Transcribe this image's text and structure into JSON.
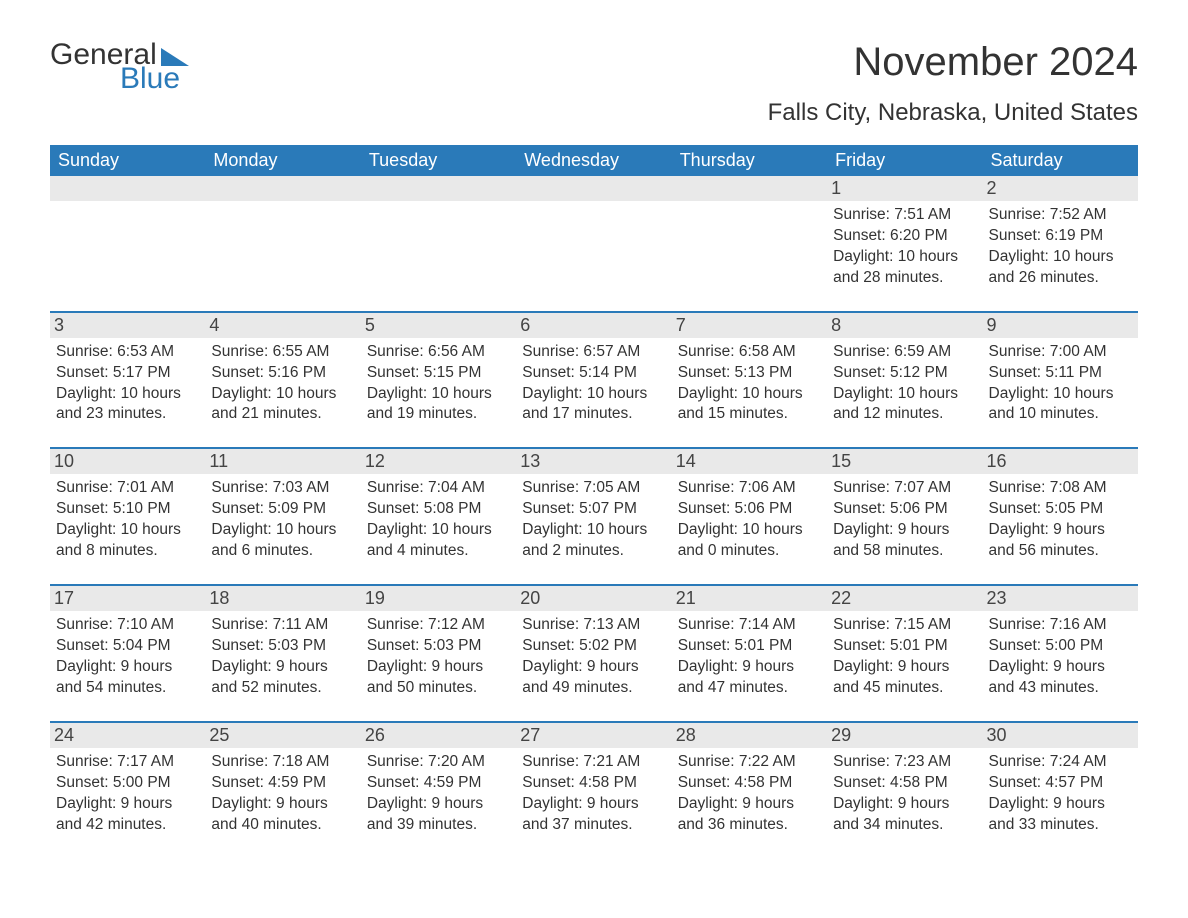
{
  "brand": {
    "word1": "General",
    "word2": "Blue"
  },
  "title": "November 2024",
  "location": "Falls City, Nebraska, United States",
  "colors": {
    "header_bg": "#2a7ab9",
    "header_text": "#ffffff",
    "daynum_bg": "#e9e9e9",
    "row_divider": "#2a7ab9",
    "body_text": "#333333",
    "page_bg": "#ffffff"
  },
  "typography": {
    "title_fontsize": 40,
    "location_fontsize": 24,
    "header_fontsize": 18,
    "daynum_fontsize": 18,
    "body_fontsize": 15.5,
    "font_family": "Arial"
  },
  "layout": {
    "columns": 7,
    "rows": 5,
    "cell_padding_bottom": 22
  },
  "weekdays": [
    "Sunday",
    "Monday",
    "Tuesday",
    "Wednesday",
    "Thursday",
    "Friday",
    "Saturday"
  ],
  "labels": {
    "sunrise_prefix": "Sunrise: ",
    "sunset_prefix": "Sunset: ",
    "daylight_prefix": "Daylight: "
  },
  "weeks": [
    [
      null,
      null,
      null,
      null,
      null,
      {
        "day": "1",
        "sunrise": "7:51 AM",
        "sunset": "6:20 PM",
        "daylight": "10 hours and 28 minutes."
      },
      {
        "day": "2",
        "sunrise": "7:52 AM",
        "sunset": "6:19 PM",
        "daylight": "10 hours and 26 minutes."
      }
    ],
    [
      {
        "day": "3",
        "sunrise": "6:53 AM",
        "sunset": "5:17 PM",
        "daylight": "10 hours and 23 minutes."
      },
      {
        "day": "4",
        "sunrise": "6:55 AM",
        "sunset": "5:16 PM",
        "daylight": "10 hours and 21 minutes."
      },
      {
        "day": "5",
        "sunrise": "6:56 AM",
        "sunset": "5:15 PM",
        "daylight": "10 hours and 19 minutes."
      },
      {
        "day": "6",
        "sunrise": "6:57 AM",
        "sunset": "5:14 PM",
        "daylight": "10 hours and 17 minutes."
      },
      {
        "day": "7",
        "sunrise": "6:58 AM",
        "sunset": "5:13 PM",
        "daylight": "10 hours and 15 minutes."
      },
      {
        "day": "8",
        "sunrise": "6:59 AM",
        "sunset": "5:12 PM",
        "daylight": "10 hours and 12 minutes."
      },
      {
        "day": "9",
        "sunrise": "7:00 AM",
        "sunset": "5:11 PM",
        "daylight": "10 hours and 10 minutes."
      }
    ],
    [
      {
        "day": "10",
        "sunrise": "7:01 AM",
        "sunset": "5:10 PM",
        "daylight": "10 hours and 8 minutes."
      },
      {
        "day": "11",
        "sunrise": "7:03 AM",
        "sunset": "5:09 PM",
        "daylight": "10 hours and 6 minutes."
      },
      {
        "day": "12",
        "sunrise": "7:04 AM",
        "sunset": "5:08 PM",
        "daylight": "10 hours and 4 minutes."
      },
      {
        "day": "13",
        "sunrise": "7:05 AM",
        "sunset": "5:07 PM",
        "daylight": "10 hours and 2 minutes."
      },
      {
        "day": "14",
        "sunrise": "7:06 AM",
        "sunset": "5:06 PM",
        "daylight": "10 hours and 0 minutes."
      },
      {
        "day": "15",
        "sunrise": "7:07 AM",
        "sunset": "5:06 PM",
        "daylight": "9 hours and 58 minutes."
      },
      {
        "day": "16",
        "sunrise": "7:08 AM",
        "sunset": "5:05 PM",
        "daylight": "9 hours and 56 minutes."
      }
    ],
    [
      {
        "day": "17",
        "sunrise": "7:10 AM",
        "sunset": "5:04 PM",
        "daylight": "9 hours and 54 minutes."
      },
      {
        "day": "18",
        "sunrise": "7:11 AM",
        "sunset": "5:03 PM",
        "daylight": "9 hours and 52 minutes."
      },
      {
        "day": "19",
        "sunrise": "7:12 AM",
        "sunset": "5:03 PM",
        "daylight": "9 hours and 50 minutes."
      },
      {
        "day": "20",
        "sunrise": "7:13 AM",
        "sunset": "5:02 PM",
        "daylight": "9 hours and 49 minutes."
      },
      {
        "day": "21",
        "sunrise": "7:14 AM",
        "sunset": "5:01 PM",
        "daylight": "9 hours and 47 minutes."
      },
      {
        "day": "22",
        "sunrise": "7:15 AM",
        "sunset": "5:01 PM",
        "daylight": "9 hours and 45 minutes."
      },
      {
        "day": "23",
        "sunrise": "7:16 AM",
        "sunset": "5:00 PM",
        "daylight": "9 hours and 43 minutes."
      }
    ],
    [
      {
        "day": "24",
        "sunrise": "7:17 AM",
        "sunset": "5:00 PM",
        "daylight": "9 hours and 42 minutes."
      },
      {
        "day": "25",
        "sunrise": "7:18 AM",
        "sunset": "4:59 PM",
        "daylight": "9 hours and 40 minutes."
      },
      {
        "day": "26",
        "sunrise": "7:20 AM",
        "sunset": "4:59 PM",
        "daylight": "9 hours and 39 minutes."
      },
      {
        "day": "27",
        "sunrise": "7:21 AM",
        "sunset": "4:58 PM",
        "daylight": "9 hours and 37 minutes."
      },
      {
        "day": "28",
        "sunrise": "7:22 AM",
        "sunset": "4:58 PM",
        "daylight": "9 hours and 36 minutes."
      },
      {
        "day": "29",
        "sunrise": "7:23 AM",
        "sunset": "4:58 PM",
        "daylight": "9 hours and 34 minutes."
      },
      {
        "day": "30",
        "sunrise": "7:24 AM",
        "sunset": "4:57 PM",
        "daylight": "9 hours and 33 minutes."
      }
    ]
  ]
}
